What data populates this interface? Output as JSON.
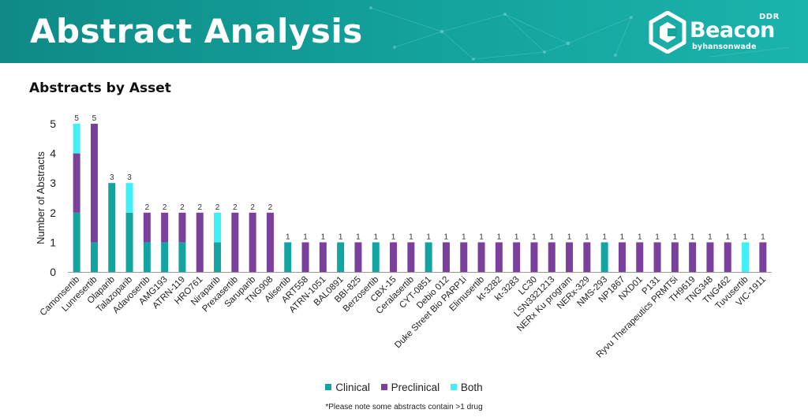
{
  "header": {
    "title": "Abstract Analysis",
    "logo": {
      "tag": "DDR",
      "name": "Beacon",
      "sub": "byhansonwade"
    }
  },
  "colors": {
    "header_teal": "#14a39d",
    "clinical": "#13a3a0",
    "preclinical": "#7b3f9c",
    "both": "#3ff0f5",
    "axis": "#999999"
  },
  "chart_data": {
    "type": "bar",
    "stacked": true,
    "title": "Abstracts by Asset",
    "xlabel": "",
    "ylabel": "Number of Abstracts",
    "ylim": [
      0,
      5
    ],
    "yticks": [
      0,
      1,
      2,
      3,
      4,
      5
    ],
    "grid": false,
    "legend_position": "bottom",
    "categories": [
      "Camonsertib",
      "Lunresertib",
      "Olaparib",
      "Talazoparib",
      "Adavosertib",
      "AMG193",
      "ATRN-119",
      "HRO761",
      "Niraparib",
      "Prexasertib",
      "Saruparib",
      "TNG908",
      "Alisertib",
      "ART558",
      "ATRN-1051",
      "BAL0891",
      "BBI-825",
      "Berzosertib",
      "CBX-15",
      "Ceralasertib",
      "CYT-0851",
      "Debio 012",
      "Duke Street Bio PARP1i",
      "Elimusertib",
      "kt-3282",
      "kt-3283",
      "LC30",
      "LSN3321213",
      "NERx Ku program",
      "NERx-329",
      "NMS-293",
      "NP1867",
      "NXD01",
      "P131",
      "Ryvu Therapeutics PRMT5i",
      "TH9619",
      "TNG348",
      "TNG462",
      "Tuvusertib",
      "VIC-1911"
    ],
    "series": [
      {
        "name": "Clinical",
        "values": [
          2,
          1,
          3,
          2,
          1,
          1,
          1,
          0,
          1,
          0,
          0,
          0,
          1,
          0,
          0,
          1,
          0,
          1,
          0,
          0,
          1,
          0,
          0,
          0,
          0,
          0,
          0,
          0,
          0,
          0,
          1,
          0,
          0,
          0,
          0,
          0,
          0,
          0,
          0,
          0
        ]
      },
      {
        "name": "Preclinical",
        "values": [
          2,
          4,
          0,
          0,
          1,
          1,
          1,
          2,
          0,
          2,
          2,
          2,
          0,
          1,
          1,
          0,
          1,
          0,
          1,
          1,
          0,
          1,
          1,
          1,
          1,
          1,
          1,
          1,
          1,
          1,
          0,
          1,
          1,
          1,
          1,
          1,
          1,
          1,
          0,
          1
        ]
      },
      {
        "name": "Both",
        "values": [
          1,
          0,
          0,
          1,
          0,
          0,
          0,
          0,
          1,
          0,
          0,
          0,
          0,
          0,
          0,
          0,
          0,
          0,
          0,
          0,
          0,
          0,
          0,
          0,
          0,
          0,
          0,
          0,
          0,
          0,
          0,
          0,
          0,
          0,
          0,
          0,
          0,
          0,
          1,
          0
        ]
      }
    ],
    "totals": [
      5,
      5,
      3,
      3,
      2,
      2,
      2,
      2,
      2,
      2,
      2,
      2,
      1,
      1,
      1,
      1,
      1,
      1,
      1,
      1,
      1,
      1,
      1,
      1,
      1,
      1,
      1,
      1,
      1,
      1,
      1,
      1,
      1,
      1,
      1,
      1,
      1,
      1,
      1,
      1
    ]
  },
  "footnote": "*Please note some abstracts contain >1 drug"
}
